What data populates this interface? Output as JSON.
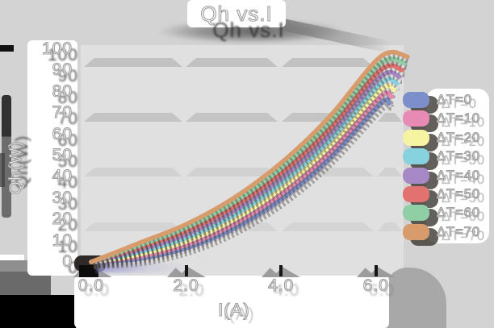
{
  "title": "Qh vs.I",
  "axes": {
    "x_label": "I(A)",
    "y_label": "Qh(W)",
    "x_ticks": [
      "0.0",
      "2.0",
      "4.0",
      "6.0"
    ],
    "y_ticks": [
      "0",
      "10",
      "20",
      "30",
      "40",
      "50",
      "60",
      "70",
      "80",
      "90",
      "100"
    ]
  },
  "legend": {
    "entries": [
      "ΔT=0",
      "ΔT=10",
      "ΔT=20",
      "ΔT=30",
      "ΔT=40",
      "ΔT=50",
      "ΔT=60",
      "ΔT=70"
    ]
  },
  "chart_data": {
    "type": "line",
    "title": "Qh vs.I",
    "xlabel": "I(A)",
    "ylabel": "Qh(W)",
    "xlim": [
      0,
      6.8
    ],
    "ylim": [
      0,
      100
    ],
    "x_tick_values": [
      0.0,
      2.0,
      4.0,
      6.0
    ],
    "y_tick_values": [
      0,
      10,
      20,
      30,
      40,
      50,
      60,
      70,
      80,
      90,
      100
    ],
    "grid": "horizontal-bands",
    "legend_position": "right",
    "x": [
      0,
      1,
      2,
      3,
      4,
      5,
      6.1
    ],
    "series": [
      {
        "name": "ΔT=0",
        "color": "#7d8fca",
        "values": [
          0,
          1.4,
          6.4,
          15.6,
          29.4,
          48.1,
          74.5
        ]
      },
      {
        "name": "ΔT=10",
        "color": "#e78ab4",
        "values": [
          0,
          2.5,
          8.0,
          17.7,
          31.9,
          50.9,
          77.6
        ]
      },
      {
        "name": "ΔT=20",
        "color": "#f6f3a2",
        "values": [
          0,
          3.5,
          9.6,
          19.8,
          34.3,
          53.7,
          80.8
        ]
      },
      {
        "name": "ΔT=30",
        "color": "#87d2de",
        "values": [
          0,
          4.6,
          11.2,
          21.8,
          36.8,
          56.5,
          83.9
        ]
      },
      {
        "name": "ΔT=40",
        "color": "#a688c5",
        "values": [
          0,
          5.6,
          12.9,
          23.9,
          39.2,
          59.3,
          87.1
        ]
      },
      {
        "name": "ΔT=50",
        "color": "#e17270",
        "values": [
          0,
          6.7,
          14.5,
          25.9,
          41.7,
          62.1,
          90.2
        ]
      },
      {
        "name": "ΔT=60",
        "color": "#90cfa5",
        "values": [
          0,
          7.7,
          16.1,
          28.0,
          44.1,
          64.9,
          93.4
        ]
      },
      {
        "name": "ΔT=70",
        "color": "#d89b6c",
        "values": [
          0,
          8.8,
          17.7,
          30.0,
          46.5,
          67.7,
          96.5
        ]
      }
    ]
  },
  "colors": {
    "page_bg": "#d3d3d3",
    "plot_bg": "#e0e0e0",
    "grid_bar": "#c2c2c2",
    "label_panel": "#ffffff",
    "text_fill": "#ffffff",
    "text_outline": "#9f9f9f",
    "shadow_dark": "#3c3c3c"
  }
}
